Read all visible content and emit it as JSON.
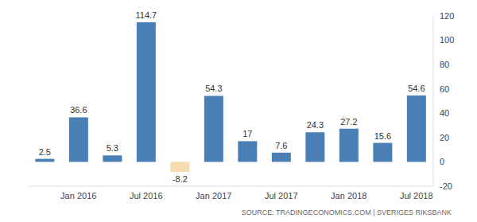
{
  "chart_data": {
    "type": "bar",
    "categories": [
      null,
      "Jan 2016",
      null,
      "Jul 2016",
      null,
      "Jan 2017",
      null,
      "Jul 2017",
      null,
      "Jan 2018",
      null,
      "Jul 2018"
    ],
    "values": [
      2.5,
      36.6,
      5.3,
      114.7,
      -8.2,
      54.3,
      17,
      7.6,
      24.3,
      27.2,
      15.6,
      54.6
    ],
    "colors": [
      "#4a7fb5",
      "#4a7fb5",
      "#4a7fb5",
      "#4a7fb5",
      "#f5dcae",
      "#4a7fb5",
      "#4a7fb5",
      "#4a7fb5",
      "#4a7fb5",
      "#4a7fb5",
      "#4a7fb5",
      "#4a7fb5"
    ],
    "ylim": [
      -20,
      120
    ],
    "yticks": [
      -20,
      0,
      20,
      40,
      60,
      80,
      100,
      120
    ],
    "grid": false,
    "data_labels": true,
    "source": "SOURCE: TRADINGECONOMICS.COM | SVERIGES RIKSBANK"
  }
}
